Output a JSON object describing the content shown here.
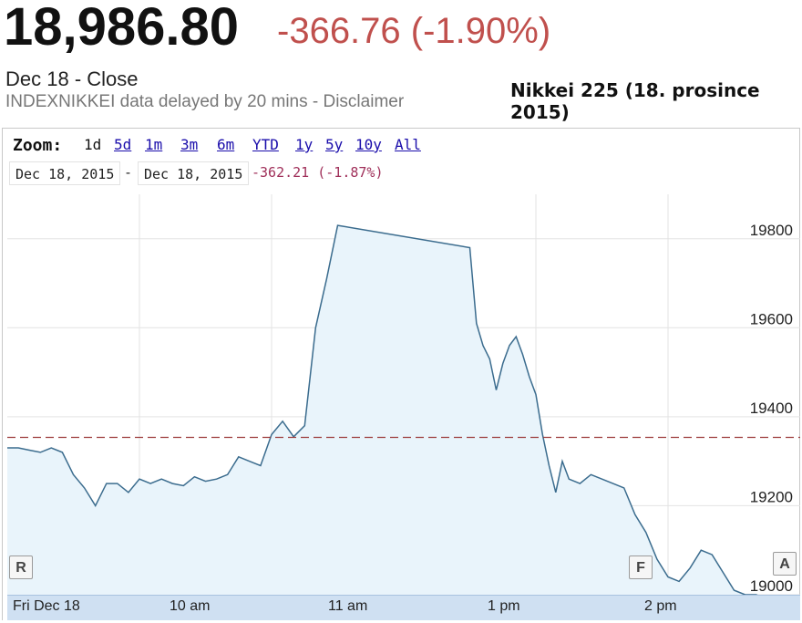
{
  "quote": {
    "price": "18,986.80",
    "change": "-366.76 (-1.90%)",
    "close_label": "Dec 18 - Close",
    "delay_label": "INDEXNIKKEI data delayed by 20 mins - Disclaimer"
  },
  "caption": "Nikkei 225 (18. prosince 2015)",
  "zoom": {
    "label": "Zoom:",
    "options": [
      "1d",
      "5d",
      "1m",
      "3m",
      "6m",
      "YTD",
      "1y",
      "5y",
      "10y",
      "All"
    ],
    "active": "1d"
  },
  "range": {
    "start": "Dec 18, 2015",
    "separator": "-",
    "end": "Dec 18, 2015",
    "change": "-362.21 (-1.87%)"
  },
  "nav": {
    "left": "R",
    "mid": "F",
    "right": "A"
  },
  "colors": {
    "line": "#3b6c8e",
    "fill": "#e9f4fb",
    "prev_close": "#9c3b3b",
    "change_negative": "#c0504d"
  },
  "chart_data": {
    "type": "area",
    "x_unit": "time of day (JST)",
    "x_range": [
      "09:00",
      "15:00"
    ],
    "ylim": [
      19000,
      19900
    ],
    "yticks": [
      19000,
      19200,
      19400,
      19600,
      19800
    ],
    "xtick_labels": [
      "Fri Dec 18",
      "10 am",
      "11 am",
      "1 pm",
      "2 pm"
    ],
    "grid": true,
    "previous_close": 19353.56,
    "x": [
      "09:00",
      "09:05",
      "09:10",
      "09:15",
      "09:20",
      "09:25",
      "09:30",
      "09:35",
      "09:40",
      "09:45",
      "09:50",
      "09:55",
      "10:00",
      "10:05",
      "10:10",
      "10:15",
      "10:20",
      "10:25",
      "10:30",
      "10:35",
      "10:40",
      "10:45",
      "10:50",
      "10:55",
      "11:00",
      "11:05",
      "11:10",
      "11:15",
      "11:20",
      "11:25",
      "11:30",
      "12:30",
      "12:33",
      "12:36",
      "12:39",
      "12:42",
      "12:45",
      "12:48",
      "12:51",
      "12:54",
      "12:57",
      "13:00",
      "13:03",
      "13:06",
      "13:09",
      "13:12",
      "13:15",
      "13:20",
      "13:25",
      "13:30",
      "13:35",
      "13:40",
      "13:45",
      "13:50",
      "13:55",
      "14:00",
      "14:05",
      "14:10",
      "14:15",
      "14:20",
      "14:25",
      "14:30",
      "14:35",
      "14:40",
      "14:45",
      "14:50",
      "14:55",
      "15:00"
    ],
    "values": [
      19330,
      19330,
      19325,
      19320,
      19330,
      19320,
      19270,
      19240,
      19200,
      19250,
      19250,
      19230,
      19260,
      19250,
      19260,
      19250,
      19245,
      19265,
      19255,
      19260,
      19270,
      19310,
      19300,
      19290,
      19360,
      19390,
      19355,
      19380,
      19600,
      19710,
      19830,
      19780,
      19610,
      19560,
      19530,
      19460,
      19520,
      19560,
      19580,
      19540,
      19490,
      19450,
      19360,
      19290,
      19230,
      19300,
      19260,
      19250,
      19270,
      19260,
      19250,
      19240,
      19180,
      19140,
      19080,
      19040,
      19030,
      19060,
      19100,
      19090,
      19050,
      19010,
      19000,
      19000,
      18990,
      18985,
      18987,
      18987
    ]
  }
}
